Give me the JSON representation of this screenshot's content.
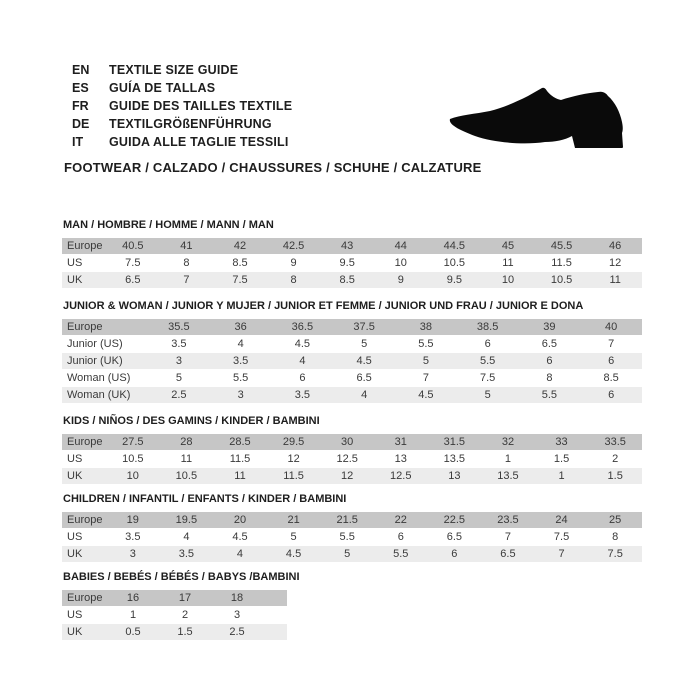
{
  "header": {
    "languages": [
      {
        "code": "EN",
        "label": "TEXTILE SIZE GUIDE"
      },
      {
        "code": "ES",
        "label": "GUÍA DE TALLAS"
      },
      {
        "code": "FR",
        "label": "GUIDE DES TAILLES TEXTILE"
      },
      {
        "code": "DE",
        "label": "TEXTILGRÖßENFÜHRUNG"
      },
      {
        "code": "IT",
        "label": "GUIDA ALLE TAGLIE TESSILI"
      }
    ],
    "category_line": "FOOTWEAR / CALZADO / CHAUSSURES / SCHUHE / CALZATURE",
    "shoe_icon": "dress-shoe-silhouette"
  },
  "colors": {
    "header_row_bg": "#c6c6c6",
    "alt_row_bg": "#ececec",
    "text": "#3a3a3a",
    "shoe": "#0a0a0a"
  },
  "tables": [
    {
      "id": "man",
      "title": "MAN / HOMBRE / HOMME / MANN / MAN",
      "rows": [
        {
          "label": "Europe",
          "values": [
            "40.5",
            "41",
            "42",
            "42.5",
            "43",
            "44",
            "44.5",
            "45",
            "45.5",
            "46"
          ]
        },
        {
          "label": "US",
          "values": [
            "7.5",
            "8",
            "8.5",
            "9",
            "9.5",
            "10",
            "10.5",
            "11",
            "11.5",
            "12"
          ]
        },
        {
          "label": "UK",
          "values": [
            "6.5",
            "7",
            "7.5",
            "8",
            "8.5",
            "9",
            "9.5",
            "10",
            "10.5",
            "11"
          ]
        }
      ]
    },
    {
      "id": "junior-woman",
      "title": "JUNIOR & WOMAN / JUNIOR Y MUJER / JUNIOR ET FEMME / JUNIOR UND FRAU / JUNIOR E DONA",
      "rows": [
        {
          "label": "Europe",
          "values": [
            "35.5",
            "36",
            "36.5",
            "37.5",
            "38",
            "38.5",
            "39",
            "40"
          ]
        },
        {
          "label": "Junior (US)",
          "values": [
            "3.5",
            "4",
            "4.5",
            "5",
            "5.5",
            "6",
            "6.5",
            "7"
          ]
        },
        {
          "label": "Junior (UK)",
          "values": [
            "3",
            "3.5",
            "4",
            "4.5",
            "5",
            "5.5",
            "6",
            "6"
          ]
        },
        {
          "label": "Woman (US)",
          "values": [
            "5",
            "5.5",
            "6",
            "6.5",
            "7",
            "7.5",
            "8",
            "8.5"
          ]
        },
        {
          "label": "Woman (UK)",
          "values": [
            "2.5",
            "3",
            "3.5",
            "4",
            "4.5",
            "5",
            "5.5",
            "6"
          ]
        }
      ]
    },
    {
      "id": "kids",
      "title": "KIDS / NIÑOS / DES GAMINS / KINDER / BAMBINI",
      "rows": [
        {
          "label": "Europe",
          "values": [
            "27.5",
            "28",
            "28.5",
            "29.5",
            "30",
            "31",
            "31.5",
            "32",
            "33",
            "33.5"
          ]
        },
        {
          "label": "US",
          "values": [
            "10.5",
            "11",
            "11.5",
            "12",
            "12.5",
            "13",
            "13.5",
            "1",
            "1.5",
            "2"
          ]
        },
        {
          "label": "UK",
          "values": [
            "10",
            "10.5",
            "11",
            "11.5",
            "12",
            "12.5",
            "13",
            "13.5",
            "1",
            "1.5"
          ]
        }
      ]
    },
    {
      "id": "children",
      "title": "CHILDREN / INFANTIL / ENFANTS / KINDER / BAMBINI",
      "rows": [
        {
          "label": "Europe",
          "values": [
            "19",
            "19.5",
            "20",
            "21",
            "21.5",
            "22",
            "22.5",
            "23.5",
            "24",
            "25"
          ]
        },
        {
          "label": "US",
          "values": [
            "3.5",
            "4",
            "4.5",
            "5",
            "5.5",
            "6",
            "6.5",
            "7",
            "7.5",
            "8"
          ]
        },
        {
          "label": "UK",
          "values": [
            "3",
            "3.5",
            "4",
            "4.5",
            "5",
            "5.5",
            "6",
            "6.5",
            "7",
            "7.5"
          ]
        }
      ]
    },
    {
      "id": "babies",
      "title": "BABIES  / BEBÉS / BÉBÉS / BABYS /BAMBINI",
      "rows": [
        {
          "label": "Europe",
          "values": [
            "16",
            "17",
            "18"
          ]
        },
        {
          "label": "US",
          "values": [
            "1",
            "2",
            "3"
          ]
        },
        {
          "label": "UK",
          "values": [
            "0.5",
            "1.5",
            "2.5"
          ]
        }
      ]
    }
  ]
}
